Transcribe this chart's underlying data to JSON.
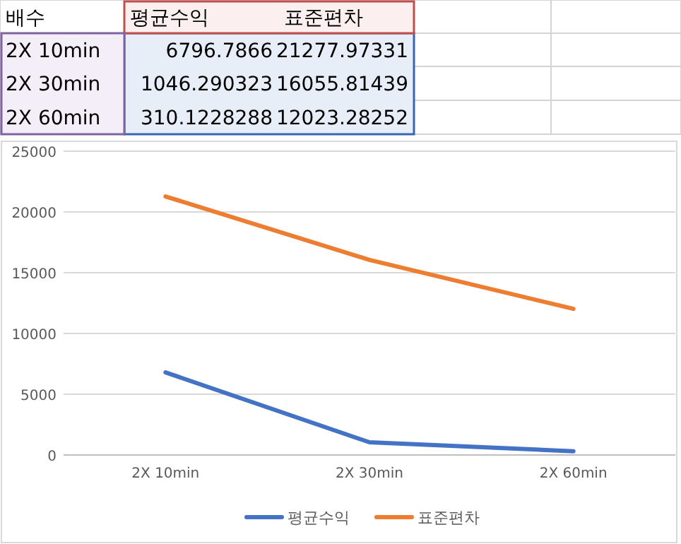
{
  "chart_data": {
    "type": "line",
    "annotations": [
      "배수",
      "6796.7866",
      "1046.290323",
      "310.1228288",
      "21277.97331",
      "16055.81439",
      "12023.28252"
    ],
    "categories": [
      "2X 10min",
      "2X 30min",
      "2X 60min"
    ],
    "series": [
      {
        "name": "평균수익",
        "color": "#4472c4",
        "values": [
          6796.7866,
          1046.290323,
          310.1228288
        ]
      },
      {
        "name": "표준편차",
        "color": "#ed7d31",
        "values": [
          21277.97331,
          16055.81439,
          12023.28252
        ]
      }
    ],
    "ylim": [
      0,
      25000
    ],
    "yticks": [
      0,
      5000,
      10000,
      15000,
      20000,
      25000
    ],
    "grid": "y",
    "legend": "bottom"
  }
}
